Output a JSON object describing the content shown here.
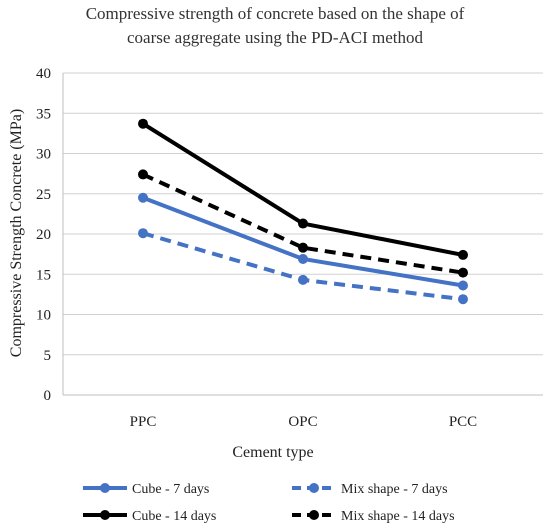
{
  "chart_data": {
    "type": "line",
    "title_lines": [
      "Compressive strength of concrete based on the shape of",
      "coarse aggregate using the PD-ACI method"
    ],
    "xlabel": "Cement type",
    "ylabel": "Compressive Strength Concrete (MPa)",
    "categories": [
      "PPC",
      "OPC",
      "PCC"
    ],
    "ylim": [
      0,
      40
    ],
    "yticks": [
      0,
      5,
      10,
      15,
      20,
      25,
      30,
      35,
      40
    ],
    "grid": "horizontal",
    "legend_position": "bottom",
    "series": [
      {
        "name": "Cube - 7 days",
        "values": [
          24.5,
          16.9,
          13.6
        ],
        "color": "#4472C4",
        "dashed": false
      },
      {
        "name": "Mix shape - 7 days",
        "values": [
          20.1,
          14.3,
          11.9
        ],
        "color": "#4472C4",
        "dashed": true
      },
      {
        "name": "Cube - 14 days",
        "values": [
          33.7,
          21.3,
          17.4
        ],
        "color": "#000000",
        "dashed": false
      },
      {
        "name": "Mix shape - 14 days",
        "values": [
          27.4,
          18.3,
          15.2
        ],
        "color": "#000000",
        "dashed": true
      }
    ]
  }
}
